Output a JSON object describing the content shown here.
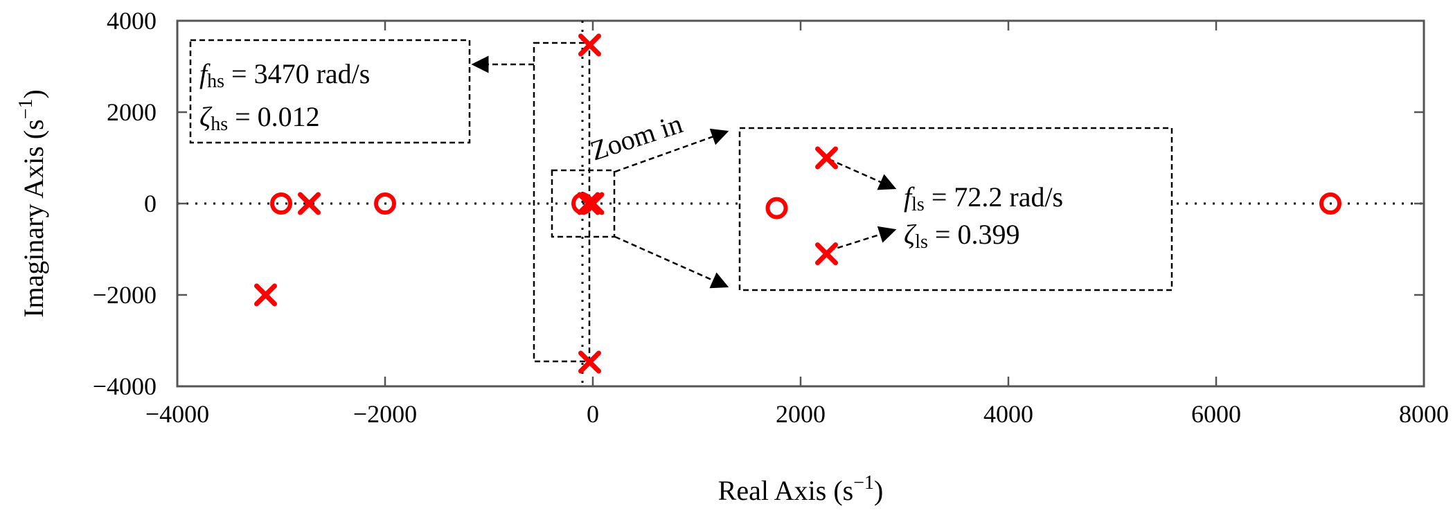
{
  "chart_data": {
    "type": "scatter",
    "title": "",
    "xlabel": "Real Axis (s",
    "xlabel_sup": "−1",
    "xlabel_close": ")",
    "ylabel": "Imaginary Axis (s",
    "ylabel_sup": "−1",
    "ylabel_close": ")",
    "xlim": [
      -4000,
      8000
    ],
    "ylim": [
      -4000,
      4000
    ],
    "xticks": [
      -4000,
      -2000,
      0,
      2000,
      4000,
      6000,
      8000
    ],
    "xtick_labels": [
      "−4000",
      "−2000",
      "0",
      "2000",
      "4000",
      "6000",
      "8000"
    ],
    "yticks": [
      -4000,
      -2000,
      0,
      2000,
      4000
    ],
    "ytick_labels": [
      "−4000",
      "−2000",
      "0",
      "2000",
      "4000"
    ],
    "grid": false,
    "color": "#ff0000",
    "series": [
      {
        "marker": "x",
        "points": [
          {
            "x": -2730,
            "y": 0
          },
          {
            "x": -3150,
            "y": -2000
          },
          {
            "x": -30,
            "y": 3470
          },
          {
            "x": -30,
            "y": -3470
          },
          {
            "x": -40,
            "y": 0
          },
          {
            "x": 0,
            "y": 0
          }
        ]
      },
      {
        "marker": "o",
        "points": [
          {
            "x": -3000,
            "y": 0
          },
          {
            "x": -2000,
            "y": 0
          },
          {
            "x": -100,
            "y": 0
          },
          {
            "x": 7100,
            "y": 0
          }
        ]
      }
    ],
    "zoom_inset": {
      "marker_x": [
        {
          "x": 2250,
          "y": 1000
        },
        {
          "x": 2250,
          "y": -1100
        }
      ],
      "marker_o": [
        {
          "x": 1770,
          "y": -100
        }
      ]
    },
    "annotations": {
      "hs_freq": {
        "sym": "f",
        "sub": "hs",
        "rest": " = 3470 rad/s"
      },
      "hs_damp": {
        "sym": "ζ",
        "sub": "hs",
        "rest": " = 0.012"
      },
      "ls_freq": {
        "sym": "f",
        "sub": "ls",
        "rest": " = 72.2 rad/s"
      },
      "ls_damp": {
        "sym": "ζ",
        "sub": "ls",
        "rest": " = 0.399"
      },
      "zoom": "Zoom in"
    }
  }
}
